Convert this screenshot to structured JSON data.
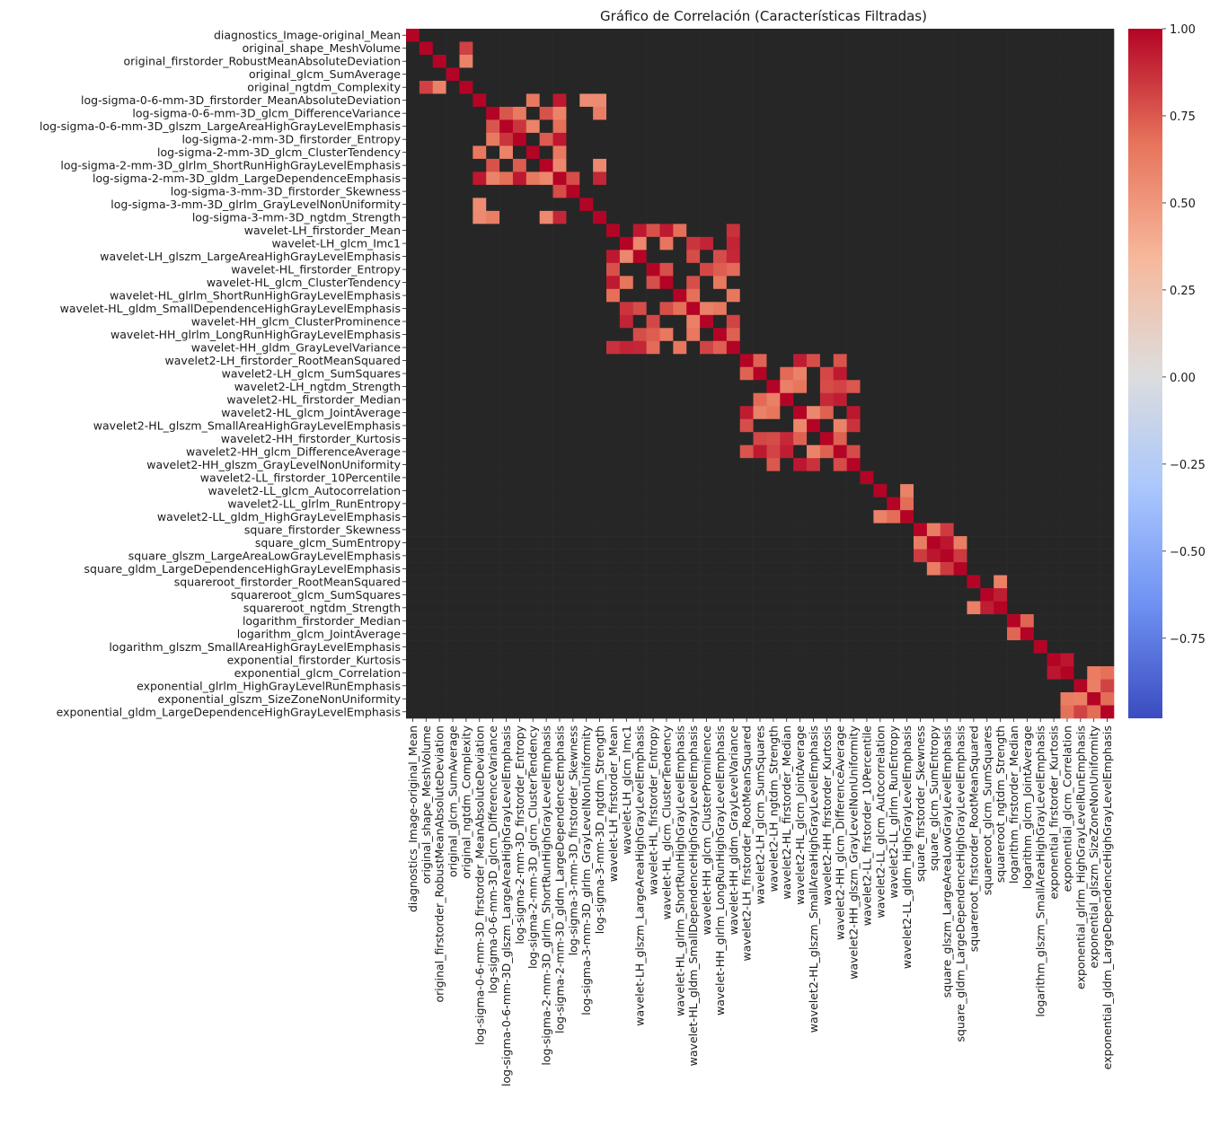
{
  "chart_data": {
    "type": "heatmap",
    "title": "Gráfico de Correlación (Características Filtradas)",
    "xlabel": "",
    "ylabel": "",
    "annotated_cells": true,
    "colormap": "coolwarm",
    "colorbar": {
      "vmin": -0.98,
      "vmax": 1.0,
      "ticks": [
        1.0,
        0.75,
        0.5,
        0.25,
        0.0,
        -0.25,
        -0.5,
        -0.75
      ],
      "tick_labels": [
        "1.00",
        "0.75",
        "0.50",
        "0.25",
        "0.00",
        "−0.25",
        "−0.50",
        "−0.75"
      ],
      "colors": [
        "#3b4cc0",
        "#6f92f3",
        "#aac7fd",
        "#dddddd",
        "#f7b89c",
        "#e7745b",
        "#b40426"
      ]
    },
    "tick_labels": [
      "diagnostics_Image-original_Mean",
      "original_shape_MeshVolume",
      "original_firstorder_RobustMeanAbsoluteDeviation",
      "original_glcm_SumAverage",
      "original_ngtdm_Complexity",
      "log-sigma-0-6-mm-3D_firstorder_MeanAbsoluteDeviation",
      "log-sigma-0-6-mm-3D_glcm_DifferenceVariance",
      "log-sigma-0-6-mm-3D_glszm_LargeAreaHighGrayLevelEmphasis",
      "log-sigma-2-mm-3D_firstorder_Entropy",
      "log-sigma-2-mm-3D_glcm_ClusterTendency",
      "log-sigma-2-mm-3D_glrlm_ShortRunHighGrayLevelEmphasis",
      "log-sigma-2-mm-3D_gldm_LargeDependenceEmphasis",
      "log-sigma-3-mm-3D_firstorder_Skewness",
      "log-sigma-3-mm-3D_glrlm_GrayLevelNonUniformity",
      "log-sigma-3-mm-3D_ngtdm_Strength",
      "wavelet-LH_firstorder_Mean",
      "wavelet-LH_glcm_Imc1",
      "wavelet-LH_glszm_LargeAreaHighGrayLevelEmphasis",
      "wavelet-HL_firstorder_Entropy",
      "wavelet-HL_glcm_ClusterTendency",
      "wavelet-HL_glrlm_ShortRunHighGrayLevelEmphasis",
      "wavelet-HL_gldm_SmallDependenceHighGrayLevelEmphasis",
      "wavelet-HH_glcm_ClusterProminence",
      "wavelet-HH_glrlm_LongRunHighGrayLevelEmphasis",
      "wavelet-HH_gldm_GrayLevelVariance",
      "wavelet2-LH_firstorder_RootMeanSquared",
      "wavelet2-LH_glcm_SumSquares",
      "wavelet2-LH_ngtdm_Strength",
      "wavelet2-HL_firstorder_Median",
      "wavelet2-HL_glcm_JointAverage",
      "wavelet2-HL_glszm_SmallAreaHighGrayLevelEmphasis",
      "wavelet2-HH_firstorder_Kurtosis",
      "wavelet2-HH_glcm_DifferenceAverage",
      "wavelet2-HH_glszm_GrayLevelNonUniformity",
      "wavelet2-LL_firstorder_10Percentile",
      "wavelet2-LL_glcm_Autocorrelation",
      "wavelet2-LL_glrlm_RunEntropy",
      "wavelet2-LL_gldm_HighGrayLevelEmphasis",
      "square_firstorder_Skewness",
      "square_glcm_SumEntropy",
      "square_glszm_LargeAreaLowGrayLevelEmphasis",
      "square_gldm_LargeDependenceHighGrayLevelEmphasis",
      "squareroot_firstorder_RootMeanSquared",
      "squareroot_glcm_SumSquares",
      "squareroot_ngtdm_Strength",
      "logarithm_firstorder_Median",
      "logarithm_glcm_JointAverage",
      "logarithm_glszm_SmallAreaHighGrayLevelEmphasis",
      "exponential_firstorder_Kurtosis",
      "exponential_glcm_Correlation",
      "exponential_glrlm_HighGrayLevelRunEmphasis",
      "exponential_glszm_SizeZoneNonUniformity",
      "exponential_gldm_LargeDependenceHighGrayLevelEmphasis"
    ],
    "block_pattern_note_free": true,
    "group_boundaries": [
      0,
      5,
      15,
      25,
      34,
      38,
      42,
      45,
      48,
      53
    ]
  }
}
